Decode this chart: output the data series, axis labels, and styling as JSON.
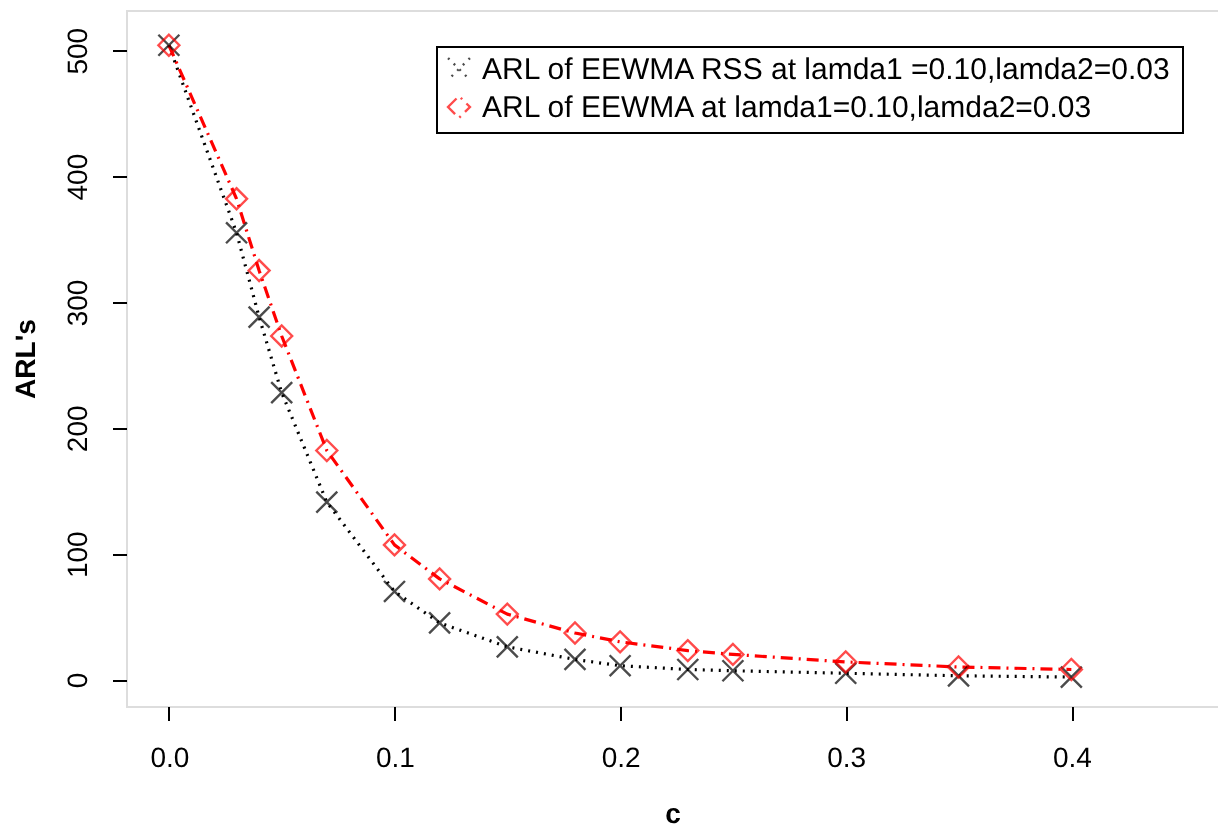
{
  "chart_data": {
    "type": "line",
    "xlabel": "c",
    "ylabel": "ARL's",
    "x": [
      0,
      0.03,
      0.04,
      0.05,
      0.07,
      0.1,
      0.12,
      0.15,
      0.18,
      0.2,
      0.23,
      0.25,
      0.3,
      0.35,
      0.4
    ],
    "series": [
      {
        "name": "ARL of EEWMA RSS at lamda1 =0.10,lamda2=0.03",
        "color": "#000000",
        "marker": "cross",
        "line_style": "dotted",
        "values": [
          504,
          355,
          288,
          228,
          141,
          70,
          45,
          26,
          16,
          11,
          8,
          7,
          5,
          3,
          2
        ]
      },
      {
        "name": "ARL of EEWMA at lamda1=0.10,lamda2=0.03",
        "color": "#ff0000",
        "marker": "diamond",
        "line_style": "dashdot",
        "values": [
          504,
          382,
          325,
          273,
          182,
          107,
          80,
          52,
          37,
          30,
          23,
          20,
          14,
          10,
          8
        ]
      }
    ],
    "xlim": [
      -0.019,
      0.465
    ],
    "ylim": [
      -21,
      532
    ],
    "xticks": [
      {
        "value": 0,
        "label": "0.0"
      },
      0.1,
      0.2,
      0.3,
      0.4
    ],
    "yticks": [
      0,
      100,
      200,
      300,
      400,
      500
    ],
    "grid": false,
    "legend": "top right"
  }
}
